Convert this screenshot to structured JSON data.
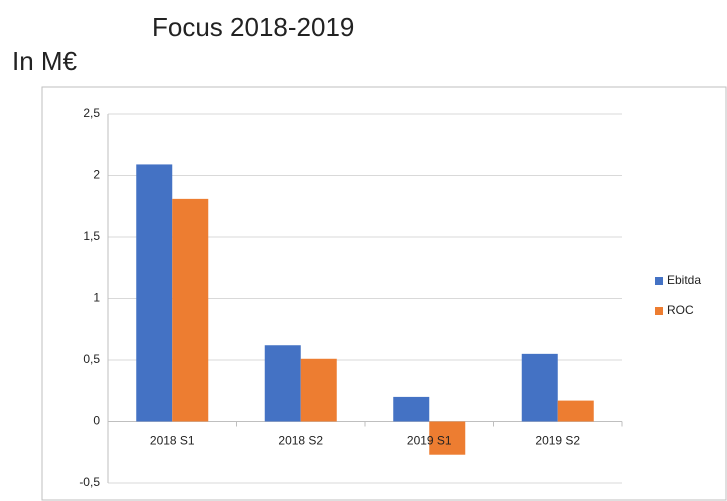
{
  "chart_data": {
    "type": "bar",
    "title": "Focus 2018-2019",
    "subtitle": "In M€",
    "categories": [
      "2018 S1",
      "2018 S2",
      "2019 S1",
      "2019 S2"
    ],
    "series": [
      {
        "name": "Ebitda",
        "color": "#4472c4",
        "values": [
          2.09,
          0.62,
          0.2,
          0.55
        ]
      },
      {
        "name": "ROC",
        "color": "#ed7d31",
        "values": [
          1.81,
          0.51,
          -0.27,
          0.17
        ]
      }
    ],
    "ylim": [
      -0.5,
      2.5
    ],
    "yticks": [
      {
        "value": -0.5,
        "label": "-0,5"
      },
      0,
      {
        "value": 0.5,
        "label": "0,5"
      },
      1,
      {
        "value": 1.5,
        "label": "1,5"
      },
      2,
      {
        "value": 2.5,
        "label": "2,5"
      }
    ],
    "grid": true,
    "legend": "right"
  }
}
